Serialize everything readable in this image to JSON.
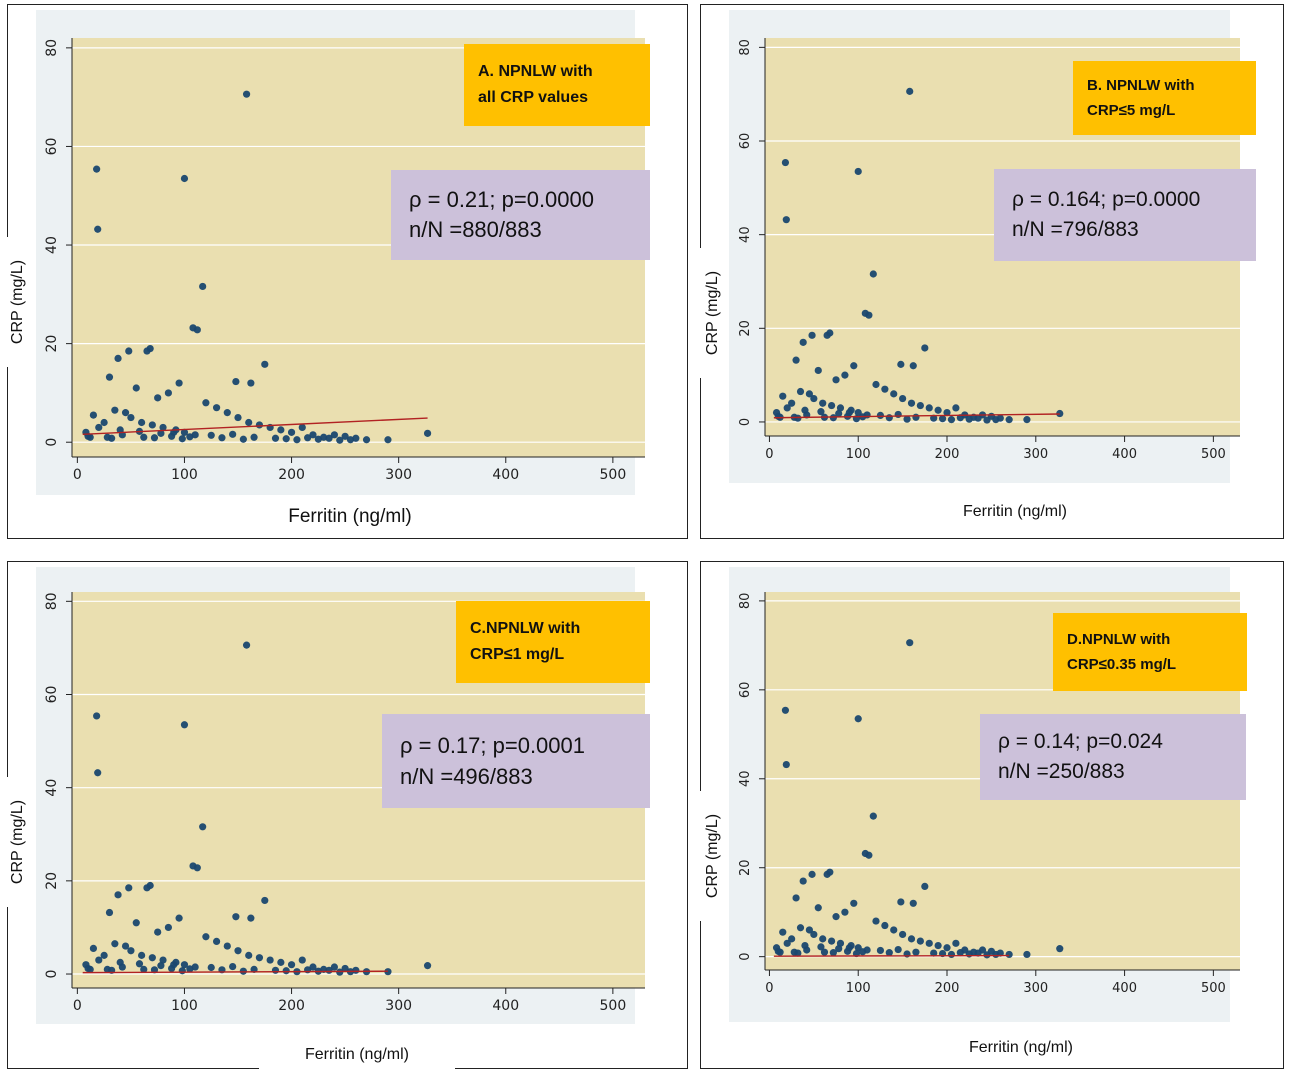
{
  "colors": {
    "plot_background": "#eadfb0",
    "outer_background": "#ecf1f3",
    "marker": "#1a476f",
    "fit_line": "#b22222",
    "grid": "#ffffff",
    "title_box": "#ffc000",
    "stat_box": "#ccc1da"
  },
  "chart_data": [
    {
      "type": "scatter",
      "title": [
        "A. NPNLW with",
        "all CRP values"
      ],
      "annotation": [
        "ρ = 0.21; p=0.0000",
        "n/N =880/883"
      ],
      "xlabel": "Ferritin (ng/ml)",
      "ylabel": "CRP (mg/L)",
      "xlim": [
        -5,
        530
      ],
      "ylim": [
        -3,
        82
      ],
      "xticks": [
        0,
        100,
        200,
        300,
        400,
        500
      ],
      "yticks": [
        0,
        20,
        40,
        60,
        80
      ],
      "grid": true,
      "fit_line": [
        [
          5,
          1.6
        ],
        [
          327,
          4.9
        ]
      ],
      "x": [
        158,
        18,
        100,
        19,
        117,
        108,
        112,
        68,
        65,
        38,
        175,
        48,
        30,
        148,
        162,
        95,
        85,
        55,
        75,
        120,
        130,
        140,
        150,
        160,
        170,
        180,
        190,
        200,
        210,
        220,
        230,
        240,
        250,
        260,
        270,
        290,
        327,
        45,
        50,
        60,
        70,
        80,
        90,
        100,
        110,
        12,
        15,
        20,
        25,
        35,
        40,
        10,
        8,
        28,
        32,
        42,
        58,
        62,
        72,
        78,
        88,
        92,
        98,
        105,
        125,
        135,
        145,
        155,
        165,
        185,
        195,
        205,
        215,
        225,
        235,
        245,
        255
      ],
      "y": [
        70.6,
        55.4,
        53.5,
        43.2,
        31.6,
        23.2,
        22.8,
        19.0,
        18.5,
        17.0,
        15.8,
        18.5,
        13.2,
        12.3,
        12.0,
        12.0,
        10.0,
        11.0,
        9.0,
        8.0,
        7.0,
        6.0,
        5.0,
        4.0,
        3.5,
        3.0,
        2.5,
        2.0,
        3.0,
        1.5,
        1.0,
        1.5,
        1.2,
        0.8,
        0.5,
        0.5,
        1.8,
        6.0,
        5.0,
        4.0,
        3.5,
        3.0,
        2.0,
        2.0,
        1.5,
        1.0,
        5.5,
        3.0,
        4.0,
        6.5,
        2.5,
        1.2,
        2.0,
        1.0,
        0.8,
        1.5,
        2.2,
        1.0,
        0.9,
        1.8,
        1.2,
        2.5,
        0.7,
        1.1,
        1.4,
        0.9,
        1.6,
        0.6,
        1.0,
        0.8,
        0.7,
        0.5,
        0.9,
        0.6,
        0.8,
        0.4,
        0.5
      ]
    },
    {
      "type": "scatter",
      "title": [
        "B. NPNLW with",
        "CRP≤5 mg/L"
      ],
      "annotation": [
        "ρ = 0.164; p=0.0000",
        "n/N =796/883"
      ],
      "xlabel": "Ferritin (ng/ml)",
      "ylabel": "CRP (mg/L)",
      "xlim": [
        -5,
        530
      ],
      "ylim": [
        -3,
        82
      ],
      "xticks": [
        0,
        100,
        200,
        300,
        400,
        500
      ],
      "yticks": [
        0,
        20,
        40,
        60,
        80
      ],
      "grid": true,
      "fit_line": [
        [
          5,
          0.9
        ],
        [
          327,
          1.7
        ]
      ],
      "x": [
        158,
        18,
        100,
        19,
        117,
        108,
        112,
        68,
        65,
        38,
        175,
        48,
        30,
        148,
        162,
        95,
        85,
        55,
        75,
        120,
        130,
        140,
        150,
        160,
        170,
        180,
        190,
        200,
        210,
        220,
        230,
        240,
        250,
        260,
        270,
        290,
        327,
        45,
        50,
        60,
        70,
        80,
        90,
        100,
        110,
        12,
        15,
        20,
        25,
        35,
        40,
        10,
        8,
        28,
        32,
        42,
        58,
        62,
        72,
        78,
        88,
        92,
        98,
        105,
        125,
        135,
        145,
        155,
        165,
        185,
        195,
        205,
        215,
        225,
        235,
        245,
        255
      ],
      "y": [
        70.6,
        55.4,
        53.5,
        43.2,
        31.6,
        23.2,
        22.8,
        19.0,
        18.5,
        17.0,
        15.8,
        18.5,
        13.2,
        12.3,
        12.0,
        12.0,
        10.0,
        11.0,
        9.0,
        8.0,
        7.0,
        6.0,
        5.0,
        4.0,
        3.5,
        3.0,
        2.5,
        2.0,
        3.0,
        1.5,
        1.0,
        1.5,
        1.2,
        0.8,
        0.5,
        0.5,
        1.8,
        6.0,
        5.0,
        4.0,
        3.5,
        3.0,
        2.0,
        2.0,
        1.5,
        1.0,
        5.5,
        3.0,
        4.0,
        6.5,
        2.5,
        1.2,
        2.0,
        1.0,
        0.8,
        1.5,
        2.2,
        1.0,
        0.9,
        1.8,
        1.2,
        2.5,
        0.7,
        1.1,
        1.4,
        0.9,
        1.6,
        0.6,
        1.0,
        0.8,
        0.7,
        0.5,
        0.9,
        0.6,
        0.8,
        0.4,
        0.5
      ]
    },
    {
      "type": "scatter",
      "title": [
        "C.NPNLW with",
        "CRP≤1 mg/L"
      ],
      "annotation": [
        "ρ = 0.17; p=0.0001",
        "n/N =496/883"
      ],
      "xlabel": "Ferritin (ng/ml)",
      "ylabel": "CRP (mg/L)",
      "xlim": [
        -5,
        530
      ],
      "ylim": [
        -3,
        82
      ],
      "xticks": [
        0,
        100,
        200,
        300,
        400,
        500
      ],
      "yticks": [
        0,
        20,
        40,
        60,
        80
      ],
      "grid": true,
      "fit_line": [
        [
          5,
          0.3
        ],
        [
          290,
          0.6
        ]
      ],
      "x": [
        158,
        18,
        100,
        19,
        117,
        108,
        112,
        68,
        65,
        38,
        175,
        48,
        30,
        148,
        162,
        95,
        85,
        55,
        75,
        120,
        130,
        140,
        150,
        160,
        170,
        180,
        190,
        200,
        210,
        220,
        230,
        240,
        250,
        260,
        270,
        290,
        327,
        45,
        50,
        60,
        70,
        80,
        90,
        100,
        110,
        12,
        15,
        20,
        25,
        35,
        40,
        10,
        8,
        28,
        32,
        42,
        58,
        62,
        72,
        78,
        88,
        92,
        98,
        105,
        125,
        135,
        145,
        155,
        165,
        185,
        195,
        205,
        215,
        225,
        235,
        245,
        255
      ],
      "y": [
        70.6,
        55.4,
        53.5,
        43.2,
        31.6,
        23.2,
        22.8,
        19.0,
        18.5,
        17.0,
        15.8,
        18.5,
        13.2,
        12.3,
        12.0,
        12.0,
        10.0,
        11.0,
        9.0,
        8.0,
        7.0,
        6.0,
        5.0,
        4.0,
        3.5,
        3.0,
        2.5,
        2.0,
        3.0,
        1.5,
        1.0,
        1.5,
        1.2,
        0.8,
        0.5,
        0.5,
        1.8,
        6.0,
        5.0,
        4.0,
        3.5,
        3.0,
        2.0,
        2.0,
        1.5,
        1.0,
        5.5,
        3.0,
        4.0,
        6.5,
        2.5,
        1.2,
        2.0,
        1.0,
        0.8,
        1.5,
        2.2,
        1.0,
        0.9,
        1.8,
        1.2,
        2.5,
        0.7,
        1.1,
        1.4,
        0.9,
        1.6,
        0.6,
        1.0,
        0.8,
        0.7,
        0.5,
        0.9,
        0.6,
        0.8,
        0.4,
        0.5
      ]
    },
    {
      "type": "scatter",
      "title": [
        "D.NPNLW with",
        "CRP≤0.35 mg/L"
      ],
      "annotation": [
        "ρ = 0.14; p=0.024",
        "n/N =250/883"
      ],
      "xlabel": "Ferritin (ng/ml)",
      "ylabel": "CRP (mg/L)",
      "xlim": [
        -5,
        530
      ],
      "ylim": [
        -3,
        82
      ],
      "xticks": [
        0,
        100,
        200,
        300,
        400,
        500
      ],
      "yticks": [
        0,
        20,
        40,
        60,
        80
      ],
      "grid": true,
      "fit_line": [
        [
          5,
          0.1
        ],
        [
          270,
          0.25
        ]
      ],
      "x": [
        158,
        18,
        100,
        19,
        117,
        108,
        112,
        68,
        65,
        38,
        175,
        48,
        30,
        148,
        162,
        95,
        85,
        55,
        75,
        120,
        130,
        140,
        150,
        160,
        170,
        180,
        190,
        200,
        210,
        220,
        230,
        240,
        250,
        260,
        270,
        290,
        327,
        45,
        50,
        60,
        70,
        80,
        90,
        100,
        110,
        12,
        15,
        20,
        25,
        35,
        40,
        10,
        8,
        28,
        32,
        42,
        58,
        62,
        72,
        78,
        88,
        92,
        98,
        105,
        125,
        135,
        145,
        155,
        165,
        185,
        195,
        205,
        215,
        225,
        235,
        245,
        255
      ],
      "y": [
        70.6,
        55.4,
        53.5,
        43.2,
        31.6,
        23.2,
        22.8,
        19.0,
        18.5,
        17.0,
        15.8,
        18.5,
        13.2,
        12.3,
        12.0,
        12.0,
        10.0,
        11.0,
        9.0,
        8.0,
        7.0,
        6.0,
        5.0,
        4.0,
        3.5,
        3.0,
        2.5,
        2.0,
        3.0,
        1.5,
        1.0,
        1.5,
        1.2,
        0.8,
        0.5,
        0.5,
        1.8,
        6.0,
        5.0,
        4.0,
        3.5,
        3.0,
        2.0,
        2.0,
        1.5,
        1.0,
        5.5,
        3.0,
        4.0,
        6.5,
        2.5,
        1.2,
        2.0,
        1.0,
        0.8,
        1.5,
        2.2,
        1.0,
        0.9,
        1.8,
        1.2,
        2.5,
        0.7,
        1.1,
        1.4,
        0.9,
        1.6,
        0.6,
        1.0,
        0.8,
        0.7,
        0.5,
        0.9,
        0.6,
        0.8,
        0.4,
        0.5
      ]
    }
  ]
}
